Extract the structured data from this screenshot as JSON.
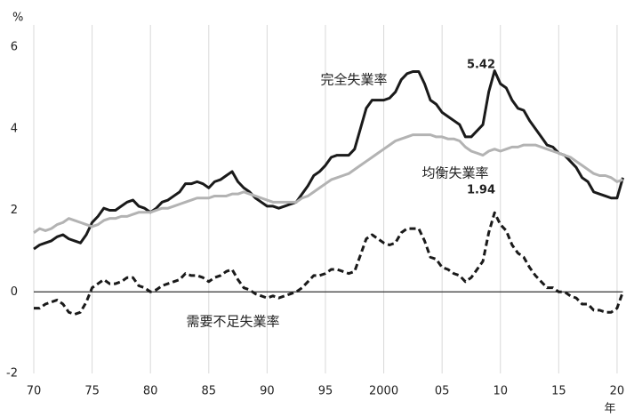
{
  "chart_data": {
    "type": "line",
    "y_unit_label": "%",
    "x_unit_label": "年",
    "x": [
      1970,
      1970.5,
      1971,
      1971.5,
      1972,
      1972.5,
      1973,
      1973.5,
      1974,
      1974.5,
      1975,
      1975.5,
      1976,
      1976.5,
      1977,
      1977.5,
      1978,
      1978.5,
      1979,
      1979.5,
      1980,
      1980.5,
      1981,
      1981.5,
      1982,
      1982.5,
      1983,
      1983.5,
      1984,
      1984.5,
      1985,
      1985.5,
      1986,
      1986.5,
      1987,
      1987.5,
      1988,
      1988.5,
      1989,
      1989.5,
      1990,
      1990.5,
      1991,
      1991.5,
      1992,
      1992.5,
      1993,
      1993.5,
      1994,
      1994.5,
      1995,
      1995.5,
      1996,
      1996.5,
      1997,
      1997.5,
      1998,
      1998.5,
      1999,
      1999.5,
      2000,
      2000.5,
      2001,
      2001.5,
      2002,
      2002.5,
      2003,
      2003.5,
      2004,
      2004.5,
      2005,
      2005.5,
      2006,
      2006.5,
      2007,
      2007.5,
      2008,
      2008.5,
      2009,
      2009.5,
      2010,
      2010.5,
      2011,
      2011.5,
      2012,
      2012.5,
      2013,
      2013.5,
      2014,
      2014.5,
      2015,
      2015.5,
      2016,
      2016.5,
      2017,
      2017.5,
      2018,
      2018.5,
      2019,
      2019.5,
      2020,
      2020.5
    ],
    "series": [
      {
        "name": "完全失業率",
        "color": "#1a1a1a",
        "line_style": "solid",
        "values": [
          1.05,
          1.15,
          1.2,
          1.25,
          1.35,
          1.4,
          1.3,
          1.25,
          1.2,
          1.4,
          1.7,
          1.85,
          2.05,
          2.0,
          2.0,
          2.1,
          2.2,
          2.25,
          2.1,
          2.05,
          1.95,
          2.05,
          2.2,
          2.25,
          2.35,
          2.45,
          2.65,
          2.65,
          2.7,
          2.65,
          2.55,
          2.7,
          2.75,
          2.85,
          2.95,
          2.7,
          2.55,
          2.45,
          2.3,
          2.2,
          2.1,
          2.1,
          2.05,
          2.1,
          2.15,
          2.2,
          2.4,
          2.6,
          2.85,
          2.95,
          3.1,
          3.3,
          3.35,
          3.35,
          3.35,
          3.5,
          4.0,
          4.5,
          4.7,
          4.7,
          4.7,
          4.75,
          4.9,
          5.2,
          5.35,
          5.4,
          5.4,
          5.1,
          4.7,
          4.6,
          4.4,
          4.3,
          4.2,
          4.1,
          3.8,
          3.8,
          3.95,
          4.1,
          4.9,
          5.42,
          5.1,
          5.0,
          4.7,
          4.5,
          4.45,
          4.2,
          4.0,
          3.8,
          3.6,
          3.55,
          3.4,
          3.35,
          3.2,
          3.05,
          2.8,
          2.7,
          2.45,
          2.4,
          2.35,
          2.3,
          2.3,
          2.8
        ]
      },
      {
        "name": "均衡失業率",
        "color": "#b3b3b3",
        "line_style": "solid",
        "values": [
          1.45,
          1.55,
          1.5,
          1.55,
          1.65,
          1.7,
          1.8,
          1.75,
          1.7,
          1.65,
          1.6,
          1.65,
          1.75,
          1.8,
          1.8,
          1.85,
          1.85,
          1.9,
          1.95,
          1.95,
          1.95,
          2.0,
          2.05,
          2.05,
          2.1,
          2.15,
          2.2,
          2.25,
          2.3,
          2.3,
          2.3,
          2.35,
          2.35,
          2.35,
          2.4,
          2.4,
          2.45,
          2.4,
          2.35,
          2.3,
          2.25,
          2.2,
          2.2,
          2.2,
          2.2,
          2.2,
          2.3,
          2.35,
          2.45,
          2.55,
          2.65,
          2.75,
          2.8,
          2.85,
          2.9,
          3.0,
          3.1,
          3.2,
          3.3,
          3.4,
          3.5,
          3.6,
          3.7,
          3.75,
          3.8,
          3.85,
          3.85,
          3.85,
          3.85,
          3.8,
          3.8,
          3.75,
          3.75,
          3.7,
          3.55,
          3.45,
          3.4,
          3.35,
          3.45,
          3.5,
          3.45,
          3.5,
          3.55,
          3.55,
          3.6,
          3.6,
          3.6,
          3.55,
          3.5,
          3.45,
          3.4,
          3.35,
          3.3,
          3.2,
          3.1,
          3.0,
          2.9,
          2.85,
          2.85,
          2.8,
          2.7,
          2.75
        ]
      },
      {
        "name": "需要不足失業率",
        "color": "#1a1a1a",
        "line_style": "dashed",
        "values": [
          -0.4,
          -0.4,
          -0.3,
          -0.25,
          -0.2,
          -0.3,
          -0.5,
          -0.55,
          -0.5,
          -0.25,
          0.1,
          0.2,
          0.3,
          0.2,
          0.2,
          0.25,
          0.35,
          0.35,
          0.15,
          0.1,
          0.0,
          0.05,
          0.15,
          0.2,
          0.25,
          0.3,
          0.45,
          0.4,
          0.4,
          0.35,
          0.25,
          0.35,
          0.4,
          0.5,
          0.55,
          0.3,
          0.1,
          0.05,
          -0.05,
          -0.1,
          -0.15,
          -0.1,
          -0.15,
          -0.1,
          -0.05,
          0.0,
          0.1,
          0.25,
          0.4,
          0.4,
          0.45,
          0.55,
          0.55,
          0.5,
          0.45,
          0.5,
          0.9,
          1.3,
          1.4,
          1.3,
          1.2,
          1.15,
          1.2,
          1.45,
          1.55,
          1.55,
          1.55,
          1.25,
          0.85,
          0.8,
          0.6,
          0.55,
          0.45,
          0.4,
          0.25,
          0.35,
          0.55,
          0.75,
          1.45,
          1.94,
          1.65,
          1.5,
          1.15,
          0.95,
          0.85,
          0.6,
          0.4,
          0.25,
          0.1,
          0.1,
          0.0,
          0.0,
          -0.1,
          -0.15,
          -0.3,
          -0.3,
          -0.45,
          -0.45,
          -0.5,
          -0.5,
          -0.4,
          0.0
        ]
      }
    ],
    "xlim": [
      1970,
      2020.5
    ],
    "xticks": [
      {
        "value": 1970,
        "label": "70"
      },
      {
        "value": 1975,
        "label": "75"
      },
      {
        "value": 1980,
        "label": "80"
      },
      {
        "value": 1985,
        "label": "85"
      },
      {
        "value": 1990,
        "label": "90"
      },
      {
        "value": 1995,
        "label": "95"
      },
      2000,
      {
        "value": 2005,
        "label": "05"
      },
      {
        "value": 2010,
        "label": "10"
      },
      {
        "value": 2015,
        "label": "15"
      },
      {
        "value": 2020,
        "label": "20"
      }
    ],
    "ylim": [
      -2,
      6
    ],
    "yticks": [
      -2,
      0,
      2,
      4,
      6
    ],
    "grid": "x"
  }
}
